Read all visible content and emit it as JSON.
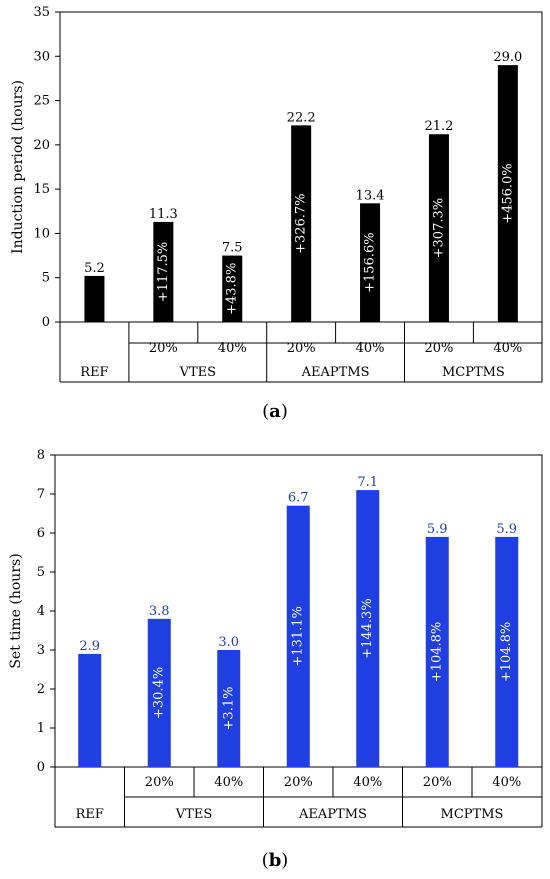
{
  "chart_data": [
    {
      "type": "bar",
      "panel_label": "a",
      "ylabel": "Induction period (hours)",
      "ylim": [
        0,
        35
      ],
      "yticks": [
        0,
        5,
        10,
        15,
        20,
        25,
        30,
        35
      ],
      "bar_color": "#000000",
      "value_label_color": "#000000",
      "inside_label_color": "#ffffff",
      "categories": [
        {
          "group": "REF",
          "sub": "",
          "value": 5.2,
          "value_label": "5.2",
          "change_label": ""
        },
        {
          "group": "VTES",
          "sub": "20%",
          "value": 11.3,
          "value_label": "11.3",
          "change_label": "+117.5%"
        },
        {
          "group": "VTES",
          "sub": "40%",
          "value": 7.5,
          "value_label": "7.5",
          "change_label": "+43.8%"
        },
        {
          "group": "AEAPTMS",
          "sub": "20%",
          "value": 22.2,
          "value_label": "22.2",
          "change_label": "+326.7%"
        },
        {
          "group": "AEAPTMS",
          "sub": "40%",
          "value": 13.4,
          "value_label": "13.4",
          "change_label": "+156.6%"
        },
        {
          "group": "MCPTMS",
          "sub": "20%",
          "value": 21.2,
          "value_label": "21.2",
          "change_label": "+307.3%"
        },
        {
          "group": "MCPTMS",
          "sub": "40%",
          "value": 29.0,
          "value_label": "29.0",
          "change_label": "+456.0%"
        }
      ],
      "groups": [
        "REF",
        "VTES",
        "AEAPTMS",
        "MCPTMS"
      ]
    },
    {
      "type": "bar",
      "panel_label": "b",
      "ylabel": "Set time (hours)",
      "ylim": [
        0,
        8
      ],
      "yticks": [
        0,
        1,
        2,
        3,
        4,
        5,
        6,
        7,
        8
      ],
      "bar_color": "#1f3fe0",
      "value_label_color": "#1f3fa8",
      "inside_label_color": "#ffffff",
      "categories": [
        {
          "group": "REF",
          "sub": "",
          "value": 2.9,
          "value_label": "2.9",
          "change_label": ""
        },
        {
          "group": "VTES",
          "sub": "20%",
          "value": 3.8,
          "value_label": "3.8",
          "change_label": "+30.4%"
        },
        {
          "group": "VTES",
          "sub": "40%",
          "value": 3.0,
          "value_label": "3.0",
          "change_label": "+3.1%"
        },
        {
          "group": "AEAPTMS",
          "sub": "20%",
          "value": 6.7,
          "value_label": "6.7",
          "change_label": "+131.1%"
        },
        {
          "group": "AEAPTMS",
          "sub": "40%",
          "value": 7.1,
          "value_label": "7.1",
          "change_label": "+144.3%"
        },
        {
          "group": "MCPTMS",
          "sub": "20%",
          "value": 5.9,
          "value_label": "5.9",
          "change_label": "+104.8%"
        },
        {
          "group": "MCPTMS",
          "sub": "40%",
          "value": 5.9,
          "value_label": "5.9",
          "change_label": "+104.8%"
        }
      ],
      "groups": [
        "REF",
        "VTES",
        "AEAPTMS",
        "MCPTMS"
      ]
    }
  ]
}
